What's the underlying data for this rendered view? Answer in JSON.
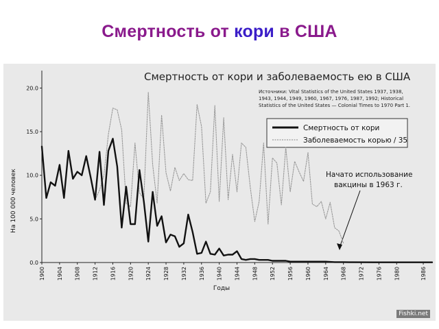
{
  "slide": {
    "title_part1": "Смертность от ",
    "title_part2": "кори",
    "title_part3": " в США",
    "watermark": "Fishki.net"
  },
  "chart_data": {
    "type": "line",
    "title": "Смертность от кори и заболеваемость ею в США",
    "source_lines": [
      "Источники: Vital Statistics of the United States 1937, 1938,",
      "1943, 1944, 1949, 1960, 1967, 1976, 1987, 1992; Historical",
      "Statistics of the United States — Colonial Times to 1970 Part 1."
    ],
    "xlabel": "Годы",
    "ylabel": "На 100 000 человек",
    "xlim": [
      1900,
      1988
    ],
    "ylim": [
      0,
      22
    ],
    "x_ticks": [
      1900,
      1904,
      1908,
      1912,
      1916,
      1920,
      1924,
      1928,
      1932,
      1936,
      1940,
      1944,
      1948,
      1952,
      1956,
      1960,
      1964,
      1968,
      1972,
      1976,
      1980,
      1986
    ],
    "y_ticks": [
      "0.0",
      "5.0",
      "10.0",
      "15.0",
      "20.0"
    ],
    "legend_position": "top-right",
    "series": [
      {
        "name": "Смертность от кори",
        "style": "thick-solid",
        "color": "#111111",
        "x": [
          1900,
          1901,
          1902,
          1903,
          1904,
          1905,
          1906,
          1907,
          1908,
          1909,
          1910,
          1911,
          1912,
          1913,
          1914,
          1915,
          1916,
          1917,
          1918,
          1919,
          1920,
          1921,
          1922,
          1923,
          1924,
          1925,
          1926,
          1927,
          1928,
          1929,
          1930,
          1931,
          1932,
          1933,
          1934,
          1935,
          1936,
          1937,
          1938,
          1939,
          1940,
          1941,
          1942,
          1943,
          1944,
          1945,
          1946,
          1947,
          1948,
          1949,
          1950,
          1951,
          1952,
          1953,
          1954,
          1955,
          1956,
          1957,
          1958,
          1959,
          1960,
          1962,
          1964,
          1966,
          1968,
          1970,
          1975,
          1980,
          1985,
          1988
        ],
        "y": [
          13.3,
          7.4,
          9.2,
          8.8,
          11.2,
          7.4,
          12.8,
          9.6,
          10.4,
          10.0,
          12.2,
          9.8,
          7.2,
          12.7,
          6.6,
          12.8,
          14.2,
          11.0,
          4.0,
          8.7,
          4.4,
          4.4,
          10.6,
          7.0,
          2.4,
          8.1,
          4.2,
          5.3,
          2.3,
          3.2,
          3.0,
          1.8,
          2.2,
          5.5,
          3.5,
          1.0,
          1.1,
          2.4,
          1.0,
          0.9,
          1.6,
          0.8,
          0.9,
          0.9,
          1.3,
          0.4,
          0.3,
          0.4,
          0.4,
          0.3,
          0.3,
          0.3,
          0.2,
          0.2,
          0.2,
          0.2,
          0.1,
          0.1,
          0.1,
          0.1,
          0.1,
          0.1,
          0.1,
          0.05,
          0.05,
          0.03,
          0.02,
          0.02,
          0.02,
          0.02
        ]
      },
      {
        "name": "Заболеваемость корью / 35",
        "style": "thin-dotted",
        "color": "#9a9a9a",
        "x": [
          1912,
          1913,
          1914,
          1915,
          1916,
          1917,
          1918,
          1919,
          1920,
          1921,
          1922,
          1923,
          1924,
          1925,
          1926,
          1927,
          1928,
          1929,
          1930,
          1931,
          1932,
          1933,
          1934,
          1935,
          1936,
          1937,
          1938,
          1939,
          1940,
          1941,
          1942,
          1943,
          1944,
          1945,
          1946,
          1947,
          1948,
          1949,
          1950,
          1951,
          1952,
          1953,
          1954,
          1955,
          1956,
          1957,
          1958,
          1959,
          1960,
          1961,
          1962,
          1963,
          1964,
          1965,
          1966,
          1967,
          1968
        ],
        "y": [
          7.2,
          8.3,
          10.0,
          14.7,
          17.7,
          17.5,
          15.2,
          6.8,
          6.4,
          13.7,
          8.0,
          7.3,
          19.5,
          11.2,
          6.8,
          16.9,
          10.3,
          8.2,
          10.9,
          9.4,
          10.2,
          9.5,
          9.4,
          18.1,
          15.6,
          6.8,
          8.1,
          18.0,
          7.0,
          16.6,
          7.2,
          12.4,
          8.1,
          13.7,
          13.2,
          8.6,
          4.7,
          7.0,
          13.7,
          4.4,
          12.0,
          11.4,
          6.6,
          13.2,
          8.1,
          11.6,
          10.4,
          9.3,
          12.6,
          6.7,
          6.4,
          7.0,
          5.0,
          6.9,
          4.0,
          3.6,
          2.2
        ]
      }
    ],
    "annotation": {
      "lines": [
        "Начато использование",
        "вакцины в 1963 г."
      ]
    }
  }
}
